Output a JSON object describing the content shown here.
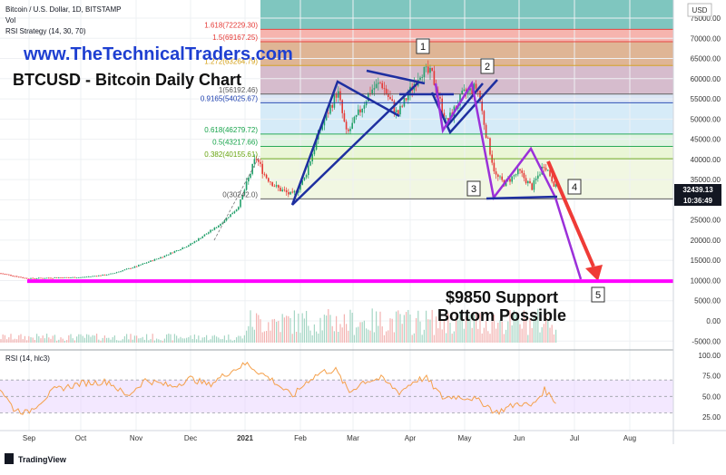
{
  "header": {
    "symbol_line": "Bitcoin / U.S. Dollar, 1D, BITSTAMP",
    "vol_label": "Vol",
    "rsi_strategy": "RSI Strategy (14, 30, 70)",
    "watermark_url": "www.TheTechnicalTraders.com",
    "chart_title": "BTCUSD - Bitcoin Daily Chart"
  },
  "currency": "USD",
  "price_axis": [
    "75000.00",
    "70000.00",
    "65000.00",
    "60000.00",
    "55000.00",
    "50000.00",
    "45000.00",
    "40000.00",
    "35000.00",
    "30000.00",
    "25000.00",
    "20000.00",
    "15000.00",
    "10000.00",
    "5000.00",
    "0.00",
    "-5000.00"
  ],
  "rsi_axis": [
    "100.00",
    "75.00",
    "50.00",
    "25.00"
  ],
  "time_axis": [
    "Sep",
    "Oct",
    "Nov",
    "Dec",
    "2021",
    "Feb",
    "Mar",
    "Apr",
    "May",
    "Jun",
    "Jul",
    "Aug"
  ],
  "current_price": "32439.13",
  "countdown": "10:36:49",
  "rsi_label": "RSI (14, hlc3)",
  "footer_brand": "TradingView",
  "fib_levels": [
    {
      "label": "1.618(72229.30)",
      "value": 72229.3,
      "color": "#e53935"
    },
    {
      "label": "1.5(69167.25)",
      "value": 69167.25,
      "color": "#e53935"
    },
    {
      "label": "1.272(63264.79)",
      "value": 63264.79,
      "color": "#d4a017"
    },
    {
      "label": "1(56192.46)",
      "value": 56192.46,
      "color": "#555555"
    },
    {
      "label": "0.9165(54025.67)",
      "value": 54025.67,
      "color": "#1e40af"
    },
    {
      "label": "0.618(46279.72)",
      "value": 46279.72,
      "color": "#16a34a"
    },
    {
      "label": "0.5(43217.66)",
      "value": 43217.66,
      "color": "#16a34a"
    },
    {
      "label": "0.382(40155.61)",
      "value": 40155.61,
      "color": "#65a30d"
    },
    {
      "label": "0(30242.0)",
      "value": 30242.0,
      "color": "#555555"
    }
  ],
  "wave_labels": [
    "1",
    "2",
    "3",
    "4",
    "5"
  ],
  "support_text_1": "$9850 Support",
  "support_text_2": "Bottom Possible",
  "support_level": 9850,
  "colors": {
    "support": "#ff00ff",
    "wave": "#1e2fa0",
    "purple": "#9b30d9",
    "arrow": "#ef3b36",
    "candle_up": "#22a06b",
    "candle_down": "#e53935"
  },
  "chart_data": {
    "type": "line",
    "title": "BTCUSD - Bitcoin Daily Chart",
    "x": [
      "Sep",
      "Oct",
      "Nov",
      "Dec",
      "2021",
      "Feb",
      "Mar",
      "Apr",
      "May",
      "Jun",
      "Jul"
    ],
    "series": [
      {
        "name": "",
        "values": [
          11500,
          10700,
          13500,
          19000,
          29000,
          34000,
          49000,
          58000,
          57000,
          36000,
          32439
        ]
      }
    ],
    "ylim": [
      -5000,
      77000
    ],
    "rsi": {
      "values": [
        68,
        70,
        62,
        78,
        90,
        60,
        64,
        60,
        48,
        36,
        42
      ],
      "ylim": [
        15,
        100
      ]
    }
  }
}
